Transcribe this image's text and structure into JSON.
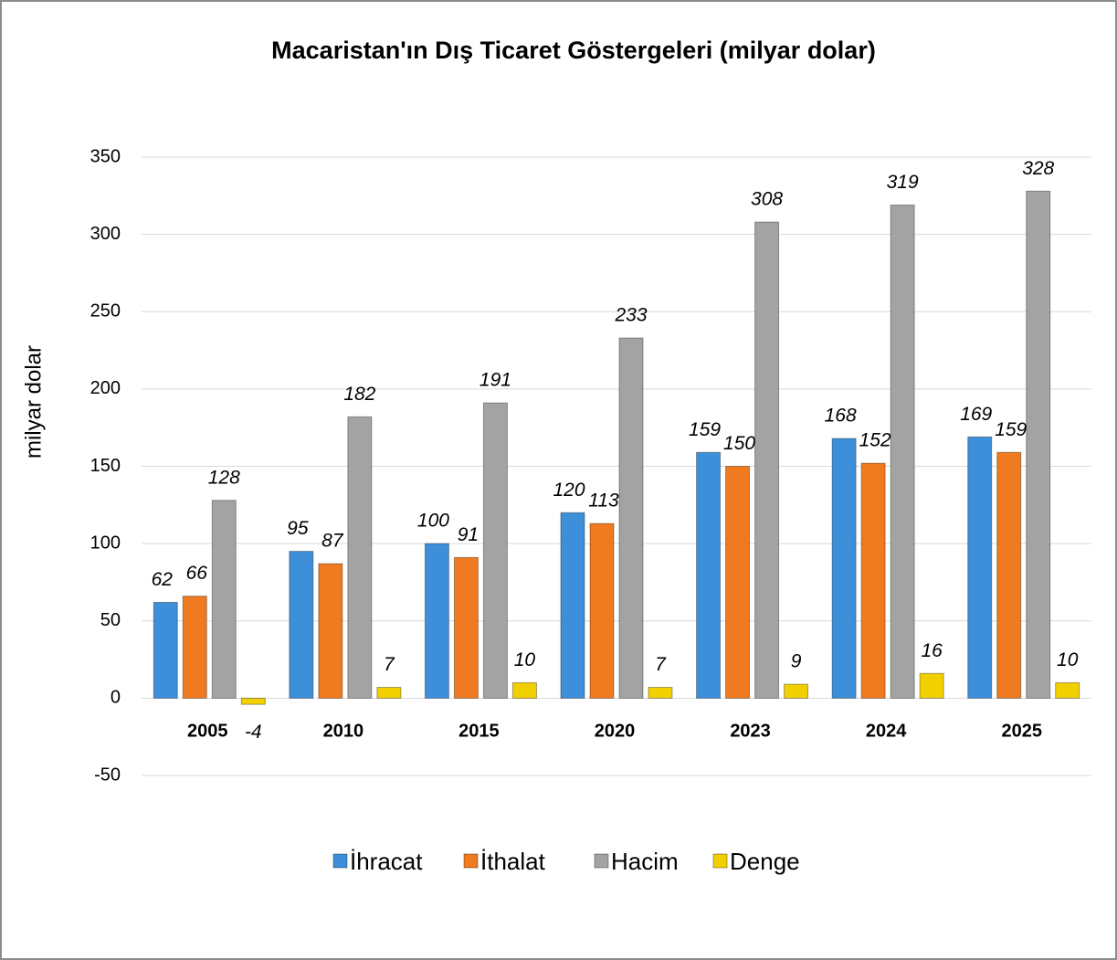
{
  "chart_data": {
    "type": "bar",
    "title": "Macaristan'ın Dış Ticaret Göstergeleri (milyar dolar)",
    "y_label": "milyar dolar",
    "categories": [
      "2005",
      "2010",
      "2015",
      "2020",
      "2023",
      "2024",
      "2025"
    ],
    "series": [
      {
        "name": "İhracat",
        "color": "#3d8fd9",
        "values": [
          62,
          95,
          100,
          120,
          159,
          168,
          169
        ]
      },
      {
        "name": "İthalat",
        "color": "#f07a1f",
        "values": [
          66,
          87,
          91,
          113,
          150,
          152,
          159
        ]
      },
      {
        "name": "Hacim",
        "color": "#a3a3a3",
        "values": [
          128,
          182,
          191,
          233,
          308,
          319,
          328
        ]
      },
      {
        "name": "Denge",
        "color": "#f2d000",
        "values": [
          -4,
          7,
          10,
          7,
          9,
          16,
          10
        ]
      }
    ],
    "ylim": [
      -50,
      350
    ],
    "yticks": [
      -50,
      0,
      50,
      100,
      150,
      200,
      250,
      300,
      350
    ],
    "grid": true,
    "legend": "bottom"
  }
}
